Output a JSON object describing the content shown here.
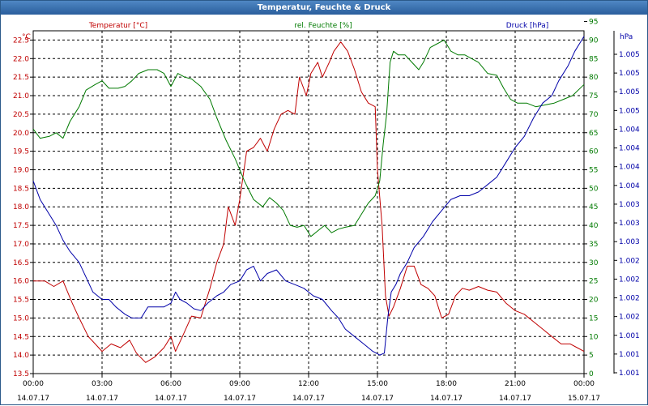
{
  "window": {
    "title": "Temperatur, Feuchte & Druck"
  },
  "colors": {
    "temperature": "#c00000",
    "humidity": "#007a00",
    "pressure": "#0000a8",
    "grid": "#000000"
  },
  "chart_data": {
    "type": "line",
    "title": "Temperatur, Feuchte & Druck",
    "grid": true,
    "x_axis": {
      "range": [
        "14.07.17 00:00",
        "15.07.17 00:00"
      ],
      "ticks": [
        {
          "time": "00:00",
          "date": "14.07.17"
        },
        {
          "time": "03:00",
          "date": "14.07.17"
        },
        {
          "time": "06:00",
          "date": "14.07.17"
        },
        {
          "time": "09:00",
          "date": "14.07.17"
        },
        {
          "time": "12:00",
          "date": "14.07.17"
        },
        {
          "time": "15:00",
          "date": "14.07.17"
        },
        {
          "time": "18:00",
          "date": "14.07.17"
        },
        {
          "time": "21:00",
          "date": "14.07.17"
        },
        {
          "time": "00:00",
          "date": "15.07.17"
        }
      ]
    },
    "y_left": {
      "unit": "°C",
      "label": "Temperatur [°C]",
      "range": [
        13.5,
        22.75
      ],
      "ticks": [
        "13.5",
        "14.0",
        "14.5",
        "15.0",
        "15.5",
        "16.0",
        "16.5",
        "17.0",
        "17.5",
        "18.0",
        "18.5",
        "19.0",
        "19.5",
        "20.0",
        "20.5",
        "21.0",
        "21.5",
        "22.0",
        "22.5"
      ]
    },
    "y_mid": {
      "unit": "%",
      "label": "rel. Feuchte [%]",
      "range": [
        0,
        92.5
      ],
      "ticks": [
        "0",
        "5",
        "10",
        "15",
        "20",
        "25",
        "30",
        "35",
        "40",
        "45",
        "50",
        "55",
        "60",
        "65",
        "70",
        "75",
        "80",
        "85",
        "90",
        "95"
      ]
    },
    "y_right": {
      "unit": "hPa",
      "label": "Druck [hPa]",
      "ticks": [
        "1.001",
        "1.001",
        "1.001",
        "1.002",
        "1.002",
        "1.002",
        "1.002",
        "1.003",
        "1.003",
        "1.003",
        "1.004",
        "1.004",
        "1.004",
        "1.004",
        "1.005",
        "1.005",
        "1.005",
        "1.005"
      ]
    },
    "series": [
      {
        "name": "Temperatur [°C]",
        "axis": "left",
        "points": [
          [
            0.0,
            16.0
          ],
          [
            0.5,
            16.0
          ],
          [
            0.9,
            15.85
          ],
          [
            1.3,
            16.0
          ],
          [
            1.7,
            15.4
          ],
          [
            2.0,
            15.0
          ],
          [
            2.4,
            14.5
          ],
          [
            2.7,
            14.3
          ],
          [
            3.0,
            14.1
          ],
          [
            3.4,
            14.3
          ],
          [
            3.8,
            14.2
          ],
          [
            4.2,
            14.4
          ],
          [
            4.5,
            14.05
          ],
          [
            4.9,
            13.8
          ],
          [
            5.3,
            13.95
          ],
          [
            5.7,
            14.2
          ],
          [
            6.0,
            14.5
          ],
          [
            6.2,
            14.1
          ],
          [
            6.5,
            14.5
          ],
          [
            6.9,
            15.05
          ],
          [
            7.3,
            15.0
          ],
          [
            7.7,
            15.8
          ],
          [
            8.0,
            16.5
          ],
          [
            8.3,
            17.0
          ],
          [
            8.5,
            18.0
          ],
          [
            8.8,
            17.5
          ],
          [
            9.0,
            18.2
          ],
          [
            9.3,
            19.5
          ],
          [
            9.6,
            19.6
          ],
          [
            9.9,
            19.85
          ],
          [
            10.2,
            19.5
          ],
          [
            10.5,
            20.1
          ],
          [
            10.8,
            20.5
          ],
          [
            11.1,
            20.6
          ],
          [
            11.4,
            20.5
          ],
          [
            11.6,
            21.5
          ],
          [
            11.9,
            21.0
          ],
          [
            12.1,
            21.6
          ],
          [
            12.4,
            21.9
          ],
          [
            12.6,
            21.5
          ],
          [
            12.9,
            21.9
          ],
          [
            13.1,
            22.2
          ],
          [
            13.4,
            22.45
          ],
          [
            13.7,
            22.2
          ],
          [
            14.0,
            21.7
          ],
          [
            14.3,
            21.1
          ],
          [
            14.6,
            20.8
          ],
          [
            14.9,
            20.7
          ],
          [
            15.0,
            19.0
          ],
          [
            15.2,
            17.5
          ],
          [
            15.35,
            15.6
          ],
          [
            15.5,
            15.05
          ],
          [
            15.7,
            15.3
          ],
          [
            16.0,
            15.8
          ],
          [
            16.3,
            16.4
          ],
          [
            16.6,
            16.4
          ],
          [
            16.9,
            15.9
          ],
          [
            17.2,
            15.8
          ],
          [
            17.5,
            15.6
          ],
          [
            17.8,
            15.0
          ],
          [
            18.1,
            15.1
          ],
          [
            18.4,
            15.6
          ],
          [
            18.7,
            15.8
          ],
          [
            19.0,
            15.75
          ],
          [
            19.4,
            15.85
          ],
          [
            19.8,
            15.75
          ],
          [
            20.2,
            15.7
          ],
          [
            20.6,
            15.4
          ],
          [
            21.0,
            15.2
          ],
          [
            21.4,
            15.1
          ],
          [
            21.8,
            14.9
          ],
          [
            22.2,
            14.7
          ],
          [
            22.6,
            14.5
          ],
          [
            23.0,
            14.3
          ],
          [
            23.4,
            14.3
          ],
          [
            23.7,
            14.2
          ],
          [
            24.0,
            14.1
          ]
        ]
      },
      {
        "name": "rel. Feuchte [%]",
        "axis": "mid",
        "points": [
          [
            0.0,
            66
          ],
          [
            0.3,
            63.5
          ],
          [
            0.7,
            64
          ],
          [
            1.0,
            65
          ],
          [
            1.3,
            63.5
          ],
          [
            1.6,
            68
          ],
          [
            2.0,
            72
          ],
          [
            2.3,
            76.5
          ],
          [
            2.7,
            78
          ],
          [
            3.0,
            79
          ],
          [
            3.3,
            77
          ],
          [
            3.7,
            77
          ],
          [
            4.0,
            77.5
          ],
          [
            4.3,
            79
          ],
          [
            4.6,
            81
          ],
          [
            5.0,
            82
          ],
          [
            5.4,
            82
          ],
          [
            5.7,
            81
          ],
          [
            6.0,
            77.5
          ],
          [
            6.3,
            81
          ],
          [
            6.6,
            80
          ],
          [
            6.9,
            79.5
          ],
          [
            7.3,
            77.5
          ],
          [
            7.7,
            74
          ],
          [
            8.0,
            69
          ],
          [
            8.4,
            63
          ],
          [
            8.8,
            58
          ],
          [
            9.2,
            52
          ],
          [
            9.6,
            47
          ],
          [
            10.0,
            45
          ],
          [
            10.3,
            47.5
          ],
          [
            10.6,
            46
          ],
          [
            10.9,
            44
          ],
          [
            11.2,
            40
          ],
          [
            11.5,
            39.5
          ],
          [
            11.8,
            40
          ],
          [
            12.1,
            37
          ],
          [
            12.4,
            38.5
          ],
          [
            12.7,
            40
          ],
          [
            13.0,
            38
          ],
          [
            13.3,
            39
          ],
          [
            13.6,
            39.5
          ],
          [
            14.0,
            40
          ],
          [
            14.3,
            43
          ],
          [
            14.6,
            46
          ],
          [
            14.9,
            48
          ],
          [
            15.1,
            52
          ],
          [
            15.25,
            62
          ],
          [
            15.4,
            70
          ],
          [
            15.55,
            84
          ],
          [
            15.7,
            87
          ],
          [
            15.9,
            86
          ],
          [
            16.2,
            86
          ],
          [
            16.5,
            84
          ],
          [
            16.8,
            82
          ],
          [
            17.0,
            84
          ],
          [
            17.3,
            88
          ],
          [
            17.6,
            89
          ],
          [
            17.9,
            90
          ],
          [
            18.2,
            87
          ],
          [
            18.5,
            86
          ],
          [
            18.8,
            86
          ],
          [
            19.1,
            85
          ],
          [
            19.4,
            84
          ],
          [
            19.8,
            81
          ],
          [
            20.2,
            80.5
          ],
          [
            20.5,
            77
          ],
          [
            20.8,
            74
          ],
          [
            21.1,
            73
          ],
          [
            21.5,
            73
          ],
          [
            21.9,
            72
          ],
          [
            22.3,
            72.5
          ],
          [
            22.7,
            73
          ],
          [
            23.1,
            74
          ],
          [
            23.5,
            75
          ],
          [
            24.0,
            78
          ]
        ]
      },
      {
        "name": "Druck [hPa]",
        "axis": "right",
        "points": [
          [
            0.0,
            52
          ],
          [
            0.3,
            47
          ],
          [
            0.7,
            43
          ],
          [
            1.0,
            40
          ],
          [
            1.3,
            36
          ],
          [
            1.6,
            33
          ],
          [
            2.0,
            30
          ],
          [
            2.3,
            26
          ],
          [
            2.6,
            22
          ],
          [
            3.0,
            20
          ],
          [
            3.3,
            20
          ],
          [
            3.6,
            18
          ],
          [
            4.0,
            16
          ],
          [
            4.3,
            15
          ],
          [
            4.7,
            15
          ],
          [
            5.0,
            18
          ],
          [
            5.3,
            18
          ],
          [
            5.7,
            18
          ],
          [
            6.0,
            19
          ],
          [
            6.2,
            22
          ],
          [
            6.4,
            20
          ],
          [
            6.7,
            19
          ],
          [
            7.0,
            17.5
          ],
          [
            7.3,
            17
          ],
          [
            7.6,
            19
          ],
          [
            8.0,
            21
          ],
          [
            8.3,
            22
          ],
          [
            8.6,
            24
          ],
          [
            9.0,
            25
          ],
          [
            9.3,
            28
          ],
          [
            9.6,
            29
          ],
          [
            9.9,
            25
          ],
          [
            10.2,
            27
          ],
          [
            10.6,
            28
          ],
          [
            11.0,
            25
          ],
          [
            11.4,
            24
          ],
          [
            11.8,
            23
          ],
          [
            12.2,
            21
          ],
          [
            12.6,
            20
          ],
          [
            13.0,
            17
          ],
          [
            13.3,
            15
          ],
          [
            13.6,
            12
          ],
          [
            14.0,
            10
          ],
          [
            14.4,
            8
          ],
          [
            14.8,
            6
          ],
          [
            15.1,
            5
          ],
          [
            15.3,
            5.5
          ],
          [
            15.45,
            15
          ],
          [
            15.6,
            22
          ],
          [
            15.8,
            24
          ],
          [
            16.0,
            27
          ],
          [
            16.3,
            30
          ],
          [
            16.6,
            34
          ],
          [
            17.0,
            37
          ],
          [
            17.4,
            41
          ],
          [
            17.8,
            44
          ],
          [
            18.2,
            47
          ],
          [
            18.6,
            48
          ],
          [
            19.0,
            48
          ],
          [
            19.4,
            49
          ],
          [
            19.8,
            51
          ],
          [
            20.2,
            53
          ],
          [
            20.6,
            57
          ],
          [
            21.0,
            61
          ],
          [
            21.4,
            64
          ],
          [
            21.8,
            69
          ],
          [
            22.2,
            73
          ],
          [
            22.6,
            75
          ],
          [
            22.9,
            79
          ],
          [
            23.3,
            83
          ],
          [
            23.6,
            87
          ],
          [
            24.0,
            91
          ]
        ]
      }
    ]
  }
}
